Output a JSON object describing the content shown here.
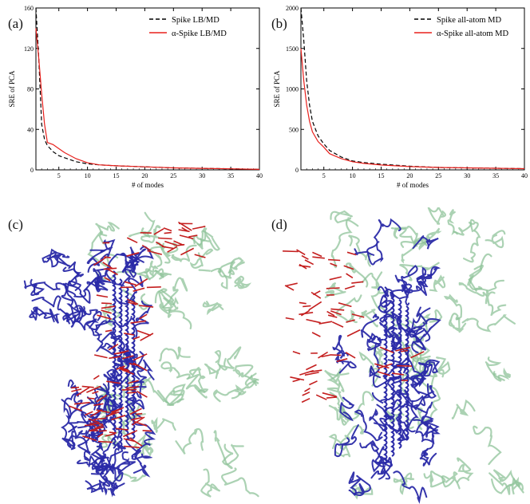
{
  "panels": {
    "a": "(a)",
    "b": "(b)",
    "c": "(c)",
    "d": "(d)"
  },
  "colors": {
    "spike_line": "#000000",
    "alpha_line": "#e8201c",
    "backbone": "#2a2aa8",
    "trimer": "#8fc39a",
    "vectors": "#c41e1e"
  },
  "chart_data": [
    {
      "type": "line",
      "panel": "(a)",
      "xlabel": "# of modes",
      "ylabel": "SRE of PCA",
      "xlim": [
        1,
        40
      ],
      "ylim": [
        0,
        160
      ],
      "xticks": [
        5,
        10,
        15,
        20,
        25,
        30,
        35,
        40
      ],
      "yticks": [
        0,
        40,
        80,
        120,
        160
      ],
      "legend_position": "top-right",
      "series": [
        {
          "name": "Spike LB/MD",
          "style": "dashed",
          "color": "#000000",
          "x": [
            1,
            1.5,
            2,
            2.5,
            3,
            4,
            5,
            6,
            8,
            10,
            12,
            15,
            20,
            25,
            30,
            35,
            40
          ],
          "y": [
            160,
            110,
            45,
            30,
            24,
            18,
            14,
            12,
            8,
            6,
            5,
            4,
            3,
            2,
            1.5,
            1,
            0.5
          ]
        },
        {
          "name": "α-Spike LB/MD",
          "style": "solid",
          "color": "#e8201c",
          "x": [
            1,
            1.5,
            2,
            2.5,
            3,
            4,
            5,
            6,
            8,
            10,
            12,
            15,
            20,
            25,
            30,
            35,
            40
          ],
          "y": [
            140,
            110,
            75,
            45,
            27,
            25,
            21,
            17,
            11,
            7,
            5,
            4,
            3,
            2,
            1.5,
            1,
            0.5
          ]
        }
      ]
    },
    {
      "type": "line",
      "panel": "(b)",
      "xlabel": "# of modes",
      "ylabel": "SRE of PCA",
      "xlim": [
        1,
        40
      ],
      "ylim": [
        0,
        2000
      ],
      "xticks": [
        5,
        10,
        15,
        20,
        25,
        30,
        35,
        40
      ],
      "yticks": [
        0,
        500,
        1000,
        1500,
        2000
      ],
      "legend_position": "top-right",
      "series": [
        {
          "name": "Spike all-atom MD",
          "style": "dashed",
          "color": "#000000",
          "x": [
            1,
            1.5,
            2,
            2.5,
            3,
            4,
            5,
            6,
            8,
            10,
            12,
            15,
            20,
            25,
            30,
            35,
            40
          ],
          "y": [
            2000,
            1600,
            1100,
            800,
            600,
            420,
            320,
            240,
            160,
            110,
            90,
            70,
            45,
            30,
            25,
            20,
            15
          ]
        },
        {
          "name": "α-Spike all-atom MD",
          "style": "solid",
          "color": "#e8201c",
          "x": [
            1,
            1.5,
            2,
            2.5,
            3,
            4,
            5,
            6,
            8,
            10,
            12,
            15,
            20,
            25,
            30,
            35,
            40
          ],
          "y": [
            1500,
            1100,
            800,
            600,
            470,
            350,
            280,
            200,
            140,
            100,
            80,
            60,
            40,
            30,
            25,
            20,
            15
          ]
        }
      ]
    }
  ]
}
